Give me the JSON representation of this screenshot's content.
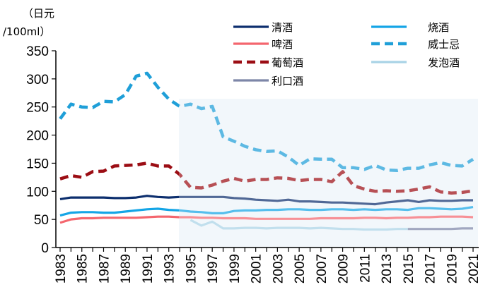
{
  "chart_data": {
    "type": "line",
    "ylabel": "（日元/100ml）",
    "ylabel_lines": [
      "（日元",
      "/100ml）"
    ],
    "ylim": [
      0,
      350
    ],
    "yticks": [
      0,
      50,
      100,
      150,
      200,
      250,
      300,
      350
    ],
    "xlim": [
      1983,
      2021
    ],
    "xtick_labels": [
      "1983",
      "1985",
      "1987",
      "1989",
      "1991",
      "1993",
      "1995",
      "1997",
      "1999",
      "2001",
      "2003",
      "2005",
      "2007",
      "2009",
      "2011",
      "2013",
      "2015",
      "2017",
      "2019",
      "2021"
    ],
    "grid": false,
    "legend_placement": "top-right",
    "highlight_range": [
      1994,
      2021
    ],
    "highlight_color": "#eef4fa",
    "series": [
      {
        "name": "清酒",
        "color": "#0d2f6e",
        "dash": "solid",
        "start": 1983,
        "values": [
          86,
          89,
          89,
          89,
          89,
          88,
          88,
          89,
          92,
          90,
          89,
          90,
          90,
          90,
          90,
          90,
          88,
          87,
          85,
          84,
          83,
          85,
          82,
          82,
          81,
          80,
          80,
          79,
          78,
          77,
          80,
          82,
          84,
          81,
          84,
          83,
          83,
          84,
          84
        ]
      },
      {
        "name": "烧酒",
        "color": "#14a5e6",
        "dash": "solid",
        "start": 1983,
        "values": [
          57,
          62,
          63,
          63,
          62,
          62,
          64,
          66,
          68,
          69,
          67,
          66,
          64,
          63,
          61,
          61,
          65,
          66,
          66,
          67,
          67,
          68,
          68,
          67,
          67,
          68,
          68,
          67,
          68,
          67,
          68,
          68,
          67,
          70,
          70,
          69,
          68,
          69,
          72
        ]
      },
      {
        "name": "啤酒",
        "color": "#f4666e",
        "dash": "solid",
        "start": 1983,
        "values": [
          44,
          50,
          52,
          52,
          53,
          53,
          53,
          53,
          54,
          55,
          55,
          54,
          54,
          53,
          53,
          52,
          52,
          52,
          51,
          51,
          51,
          51,
          51,
          51,
          52,
          52,
          52,
          52,
          53,
          53,
          52,
          53,
          53,
          54,
          54,
          55,
          55,
          55,
          54
        ]
      },
      {
        "name": "威士忌",
        "color": "#1f9fd8",
        "dash": "dashed",
        "start": 1983,
        "values": [
          229,
          255,
          250,
          249,
          260,
          259,
          272,
          305,
          310,
          285,
          264,
          251,
          255,
          247,
          251,
          197,
          189,
          180,
          174,
          171,
          172,
          161,
          146,
          158,
          157,
          157,
          142,
          142,
          139,
          146,
          138,
          137,
          141,
          141,
          147,
          151,
          146,
          145,
          157
        ]
      },
      {
        "name": "葡萄酒",
        "color": "#9b0d14",
        "dash": "dashed",
        "start": 1983,
        "values": [
          122,
          128,
          125,
          135,
          136,
          145,
          146,
          147,
          150,
          145,
          145,
          130,
          107,
          106,
          111,
          118,
          123,
          118,
          121,
          121,
          124,
          123,
          119,
          121,
          121,
          117,
          135,
          110,
          104,
          100,
          101,
          100,
          101,
          104,
          108,
          99,
          97,
          98,
          101
        ]
      },
      {
        "name": "发泡酒",
        "color": "#a9d3e6",
        "dash": "solid",
        "start": 1995,
        "values": [
          49,
          39,
          46,
          34,
          34,
          35,
          35,
          34,
          35,
          35,
          35,
          34,
          35,
          34,
          33,
          33,
          32,
          32,
          32,
          33,
          33
        ]
      },
      {
        "name": "利口酒",
        "color": "#7d86a8",
        "dash": "solid",
        "start": 2015,
        "values": [
          33,
          33,
          33,
          33,
          33,
          34,
          34
        ]
      }
    ]
  }
}
